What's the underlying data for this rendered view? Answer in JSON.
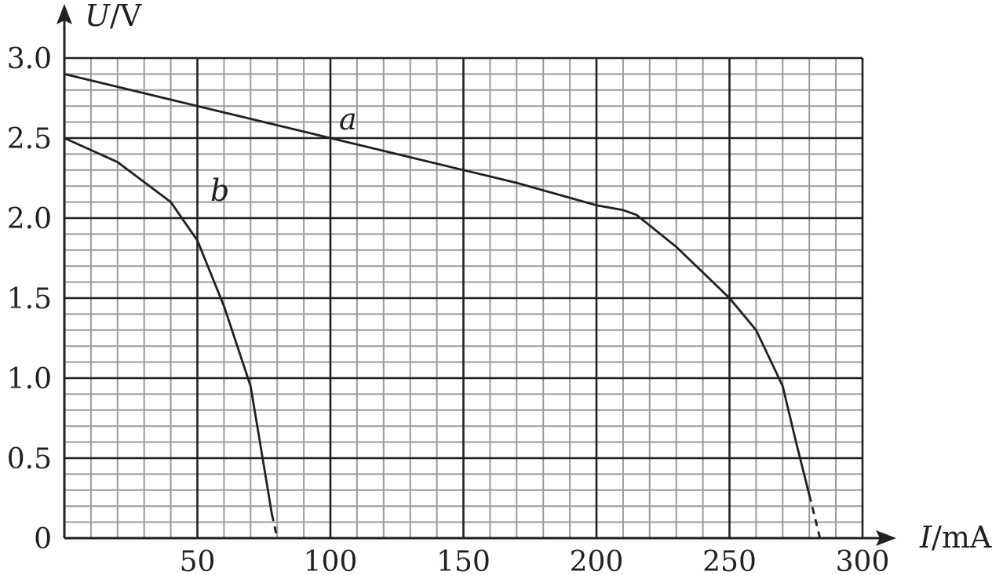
{
  "chart_data": {
    "type": "line",
    "xlabel": {
      "symbol": "I",
      "unit": "mA"
    },
    "ylabel": {
      "symbol": "U",
      "unit": "V"
    },
    "xlim": [
      0,
      300
    ],
    "ylim": [
      0,
      3.0
    ],
    "x_ticks": [
      "50",
      "100",
      "150",
      "200",
      "250",
      "300"
    ],
    "y_ticks": [
      "0",
      "0.5",
      "1.0",
      "1.5",
      "2.0",
      "2.5",
      "3.0"
    ],
    "grid": true,
    "minor_grid_step": {
      "x": 10,
      "y": 0.1
    },
    "series": [
      {
        "name": "a",
        "points": [
          [
            0,
            2.9
          ],
          [
            50,
            2.7
          ],
          [
            100,
            2.5
          ],
          [
            150,
            2.3
          ],
          [
            170,
            2.22
          ],
          [
            200,
            2.08
          ],
          [
            210,
            2.05
          ],
          [
            215,
            2.02
          ],
          [
            230,
            1.82
          ],
          [
            250,
            1.5
          ],
          [
            260,
            1.3
          ],
          [
            270,
            0.95
          ],
          [
            275,
            0.6
          ],
          [
            280,
            0.27
          ]
        ],
        "extrapolated": [
          [
            280,
            0.27
          ],
          [
            284,
            0.0
          ]
        ]
      },
      {
        "name": "b",
        "points": [
          [
            0,
            2.5
          ],
          [
            20,
            2.35
          ],
          [
            40,
            2.1
          ],
          [
            50,
            1.86
          ],
          [
            60,
            1.45
          ],
          [
            70,
            0.95
          ],
          [
            72,
            0.75
          ],
          [
            75,
            0.45
          ],
          [
            78,
            0.15
          ]
        ],
        "extrapolated": [
          [
            78,
            0.15
          ],
          [
            80,
            0.0
          ]
        ]
      }
    ]
  }
}
